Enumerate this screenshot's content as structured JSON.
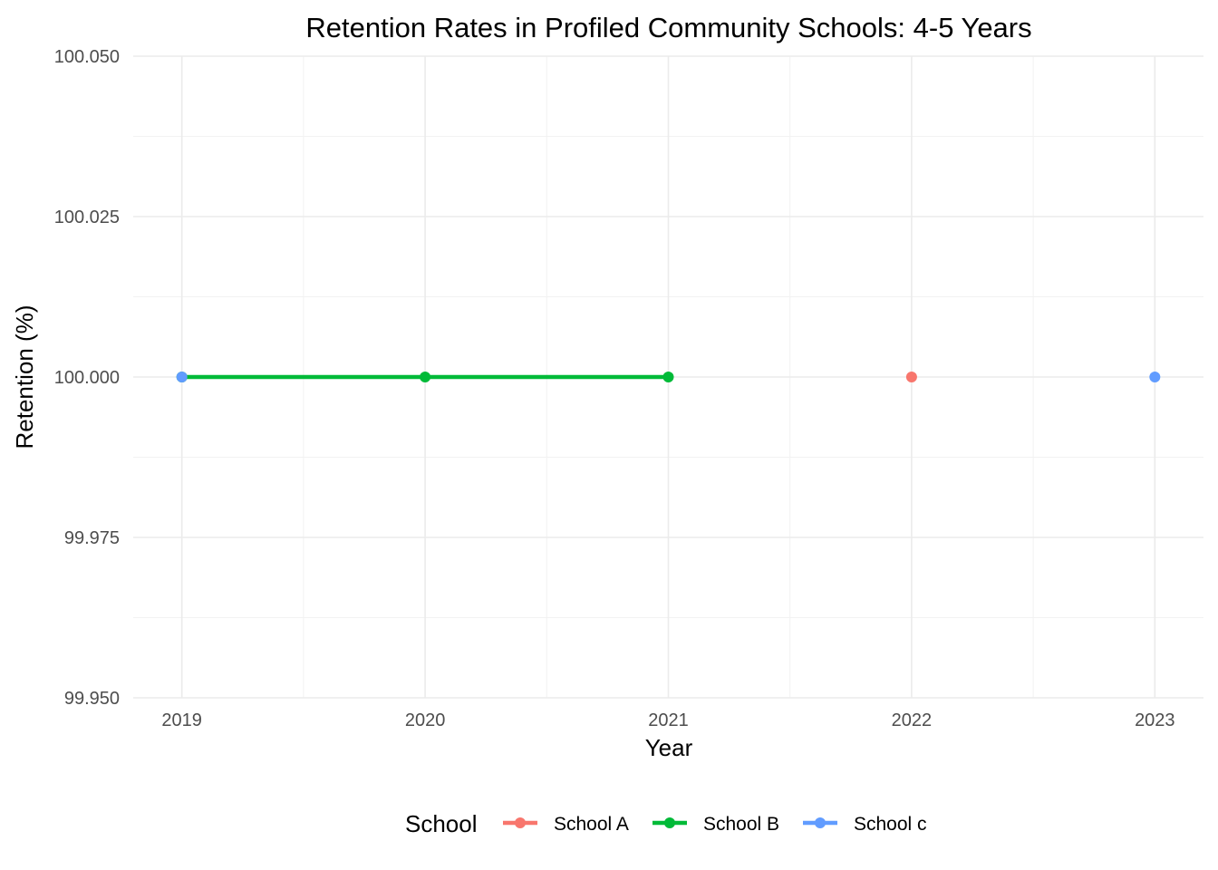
{
  "chart_data": {
    "type": "line",
    "title": "Retention Rates in Profiled Community Schools: 4-5 Years",
    "xlabel": "Year",
    "ylabel": "Retention (%)",
    "x_ticks": [
      "2019",
      "2020",
      "2021",
      "2022",
      "2023"
    ],
    "y_ticks": [
      "99.950",
      "99.975",
      "100.000",
      "100.025",
      "100.050"
    ],
    "xlim": [
      2018.8,
      2023.2
    ],
    "ylim": [
      99.95,
      100.05
    ],
    "grid": true,
    "legend": {
      "title": "School",
      "position": "bottom"
    },
    "series": [
      {
        "name": "School A",
        "color": "#f8766d",
        "x": [
          2022
        ],
        "y": [
          100.0
        ]
      },
      {
        "name": "School B",
        "color": "#00ba38",
        "x": [
          2019,
          2020,
          2021
        ],
        "y": [
          100.0,
          100.0,
          100.0
        ]
      },
      {
        "name": "School c",
        "color": "#619cff",
        "x": [
          2019,
          2023
        ],
        "y": [
          100.0,
          100.0
        ],
        "connected": false
      }
    ]
  }
}
